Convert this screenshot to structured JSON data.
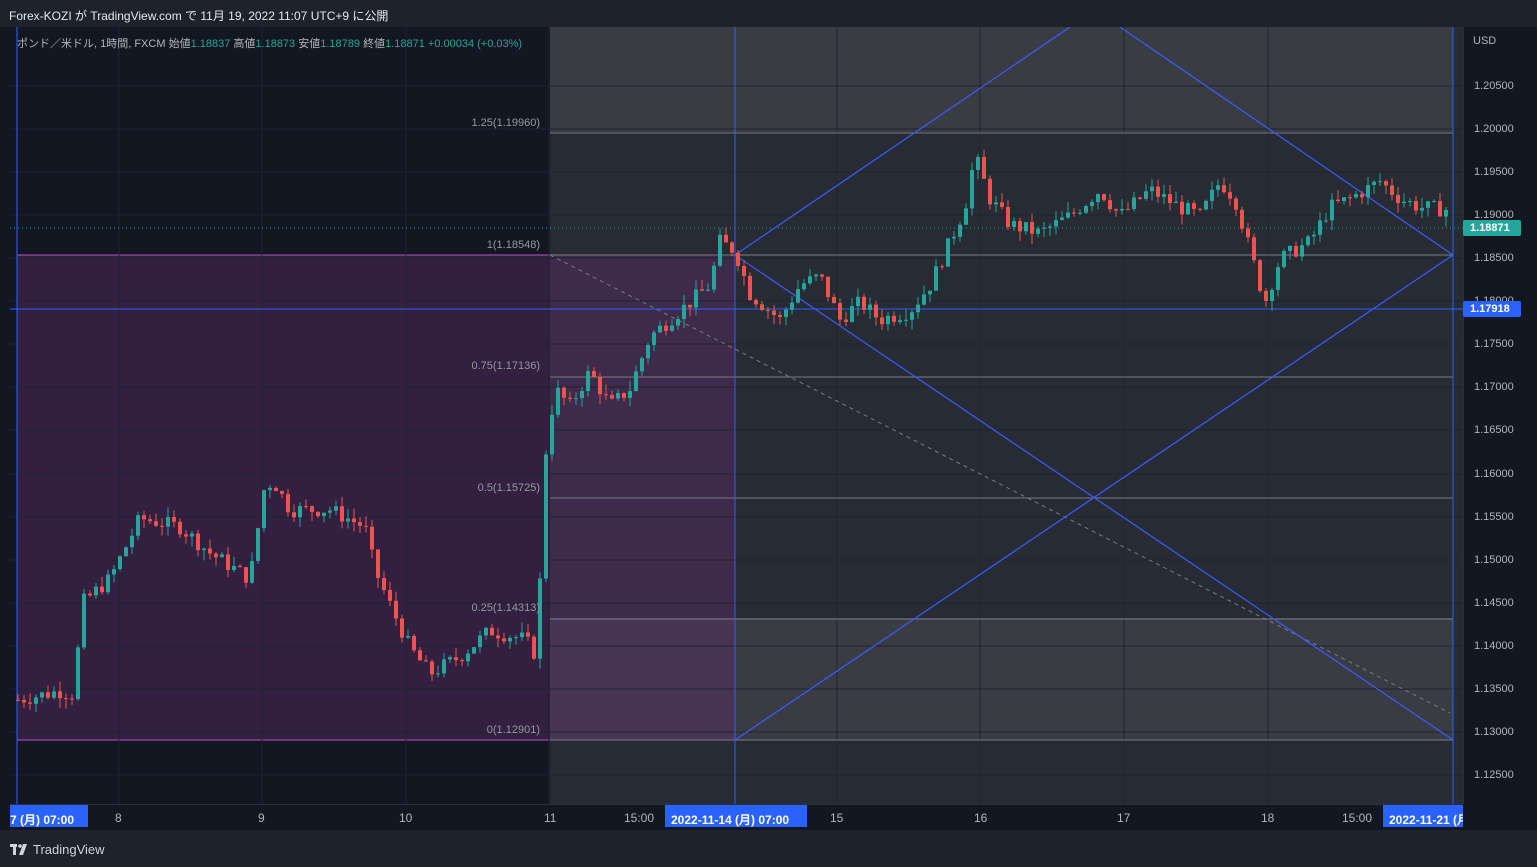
{
  "header": {
    "published": "Forex-KOZI が TradingView.com で 11月 19, 2022 11:07 UTC+9 に公開"
  },
  "legend": {
    "symbol": "ポンド／米ドル, 1時間, FXCM",
    "open_label": "始値",
    "open": "1.18837",
    "high_label": "高値",
    "high": "1.18873",
    "low_label": "安値",
    "low": "1.18789",
    "close_label": "終値",
    "close": "1.18871",
    "change": "+0.00034 (+0.03%)"
  },
  "price_scale": {
    "currency": "USD",
    "labels": [
      "1.20500",
      "1.20000",
      "1.19500",
      "1.19000",
      "1.18500",
      "1.18000",
      "1.17500",
      "1.17000",
      "1.16500",
      "1.16000",
      "1.15500",
      "1.15000",
      "1.14500",
      "1.14000",
      "1.13500",
      "1.13000",
      "1.12500"
    ],
    "current_price": "1.18871",
    "line_price": "1.17918"
  },
  "fib_levels": [
    {
      "label": "1.25(1.19960)"
    },
    {
      "label": "1(1.18548)"
    },
    {
      "label": "0.75(1.17136)"
    },
    {
      "label": "0.5(1.15725)"
    },
    {
      "label": "0.25(1.14313)"
    },
    {
      "label": "0(1.12901)"
    }
  ],
  "time_scale": {
    "left_badge": "7 (月)   07:00",
    "labels": [
      "8",
      "9",
      "10",
      "11",
      "15:00",
      "15",
      "16",
      "17",
      "18",
      "15:00"
    ],
    "center_badge": "2022-11-14 (月)   07:00",
    "right_badge": "2022-11-21 (月"
  },
  "footer": {
    "brand": "TradingView"
  },
  "colors": {
    "up": "#26a69a",
    "down": "#ef5350",
    "accent": "#2962ff",
    "background": "#131722"
  }
}
